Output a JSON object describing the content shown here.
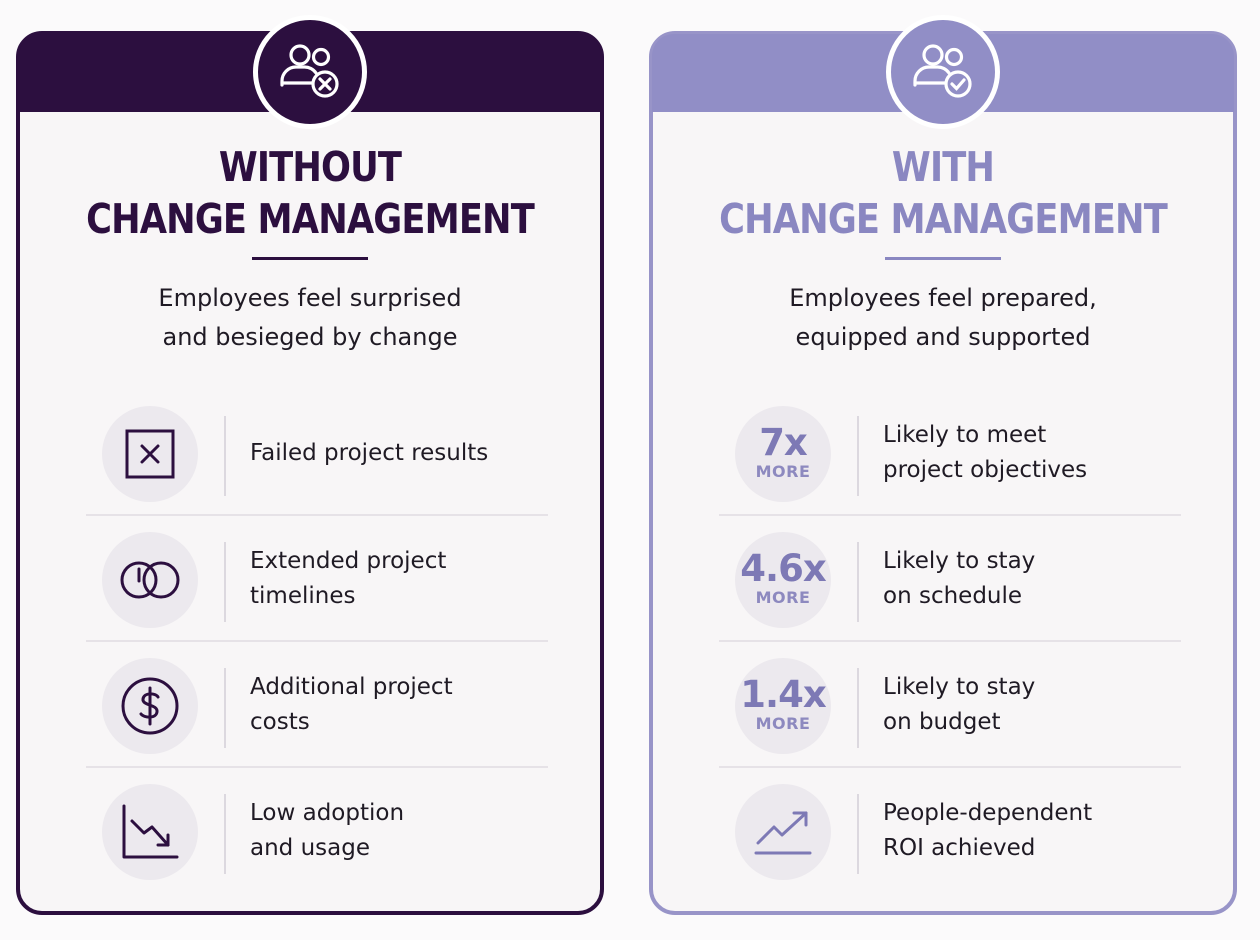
{
  "left": {
    "title_line1": "WITHOUT",
    "title_line2": "CHANGE MANAGEMENT",
    "subtitle_line1": "Employees feel surprised",
    "subtitle_line2": "and besieged by change",
    "header_icon": "people-x-icon",
    "rows": [
      {
        "icon": "x-box-icon",
        "line1": "Failed project results",
        "line2": ""
      },
      {
        "icon": "clock-rings-icon",
        "line1": "Extended project",
        "line2": "timelines"
      },
      {
        "icon": "dollar-icon",
        "line1": "Additional project",
        "line2": "costs"
      },
      {
        "icon": "trend-down-icon",
        "line1": "Low adoption",
        "line2": "and usage"
      }
    ],
    "color": "#2c0f3f"
  },
  "right": {
    "title_line1": "WITH",
    "title_line2": "CHANGE MANAGEMENT",
    "subtitle_line1": "Employees feel prepared,",
    "subtitle_line2": "equipped and supported",
    "header_icon": "people-check-icon",
    "rows": [
      {
        "stat": "7x",
        "stat_label": "MORE",
        "line1": "Likely to meet",
        "line2": "project objectives"
      },
      {
        "stat": "4.6x",
        "stat_label": "MORE",
        "line1": "Likely to stay",
        "line2": "on schedule"
      },
      {
        "stat": "1.4x",
        "stat_label": "MORE",
        "line1": "Likely to stay",
        "line2": "on budget"
      },
      {
        "icon": "trend-up-icon",
        "line1": "People-dependent",
        "line2": "ROI achieved"
      }
    ],
    "color": "#918ec6"
  }
}
